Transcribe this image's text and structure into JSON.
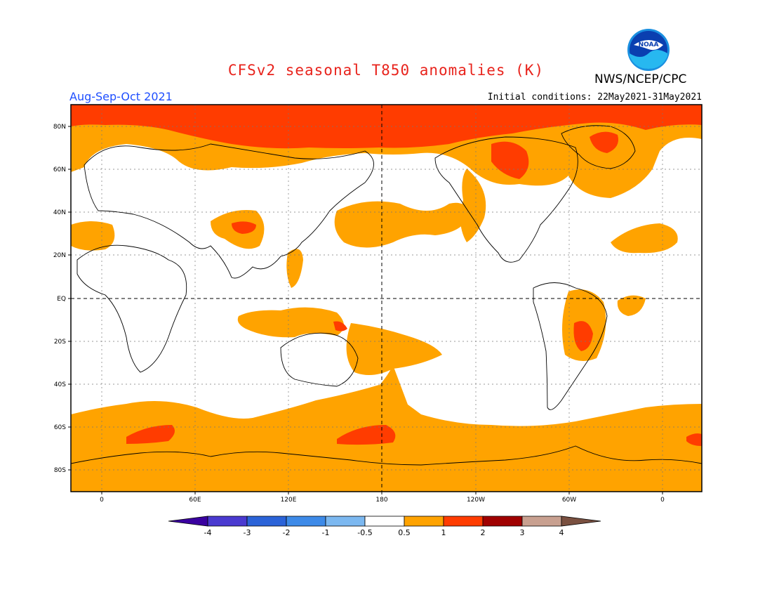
{
  "header": {
    "title": "CFSv2 seasonal T850 anomalies (K)",
    "agency": "NWS/NCEP/CPC",
    "logo_text": "NOAA",
    "period": "Aug-Sep-Oct 2021",
    "initial_conditions": "Initial conditions: 22May2021-31May2021"
  },
  "map": {
    "lat_labels": [
      "80N",
      "60N",
      "40N",
      "20N",
      "EQ",
      "20S",
      "40S",
      "60S",
      "80S"
    ],
    "lon_labels": [
      "0",
      "60E",
      "120E",
      "180",
      "120W",
      "60W",
      "0"
    ]
  },
  "colorbar": {
    "tick_labels": [
      "-4",
      "-3",
      "-2",
      "-1",
      "-0.5",
      "0.5",
      "1",
      "2",
      "3",
      "4"
    ],
    "colors": [
      "#3a00a0",
      "#4a3ad0",
      "#2b63d8",
      "#3d8ae8",
      "#7cb8f0",
      "#ffffff",
      "#ffa300",
      "#ff3c00",
      "#a00000",
      "#c8a090",
      "#7a5040"
    ],
    "over_color": "#7a5040",
    "under_color": "#3a00a0"
  },
  "legend": {
    "colors": {
      "half_to_one": "#ffa300",
      "one_to_two": "#ff3c00",
      "land_outline": "#000000"
    }
  }
}
